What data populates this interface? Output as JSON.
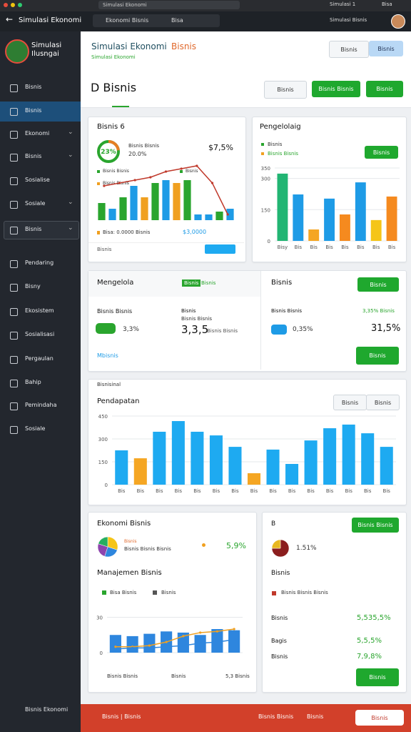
{
  "browser": {
    "tab": "Simulasi Ekonomi",
    "address": "Ekonomi Bisnis",
    "tab2": "Bisa",
    "user": "Simulasi 1",
    "action": "Bisa"
  },
  "app_bar": {
    "title": "Simulasi Ekonomi",
    "user": "Simulasi Bisnis"
  },
  "sidebar": {
    "logo": "Simulasi Ilusngai",
    "items": [
      "Bisnis",
      "Bisnis",
      "Ekonomi",
      "Bisnis",
      "Sosialise",
      "Sosiale",
      "Bisnis",
      "Pendaring",
      "Bisny",
      "Ekosistem",
      "Sosialisasi",
      "Pergaulan",
      "Bahip",
      "Pemindaha",
      "Sosiale"
    ],
    "footer": "Bisnis Ekonomi"
  },
  "header": {
    "title_a": "Simulasi Ekonomi",
    "title_b": "Bisnis",
    "subtitle": "Simulasi Ekonomi",
    "btn1": "Bisnis",
    "btn2": "Bisnis"
  },
  "page": {
    "title": "D Bisnis",
    "btn1": "Bisnis",
    "btn2": "Bisnis Bisnis",
    "btn3": "Bisnis"
  },
  "card1": {
    "title": "Bisnis 6",
    "ring_label": "23%",
    "ring_value": 23,
    "line1": "Bisnis Bisnis",
    "line2": "20.0%",
    "amount": "$7,5%",
    "legend": [
      "Bisnis Bisnis",
      "Bisnis",
      "Bisnis Bisnis"
    ],
    "chart": {
      "type": "bar",
      "ylim": [
        0,
        10
      ],
      "values": [
        3,
        2,
        4,
        6,
        4,
        6.5,
        7,
        6.5,
        7,
        1,
        1,
        1.5,
        2
      ],
      "colors": [
        "#2aa52e",
        "#1e9be6",
        "#2aa52e",
        "#1e9be6",
        "#f0a020",
        "#2aa52e",
        "#1e9be6",
        "#f0a020",
        "#2aa52e",
        "#1e9be6",
        "#1e9be6",
        "#2aa52e",
        "#1e9be6"
      ],
      "line": {
        "color": "#c0392b",
        "values": [
          6,
          6.5,
          7,
          7.5,
          8.5,
          9,
          9.5,
          6.5,
          1
        ]
      }
    },
    "footer_text": "Bisa: 0.0000 Bisnis",
    "footer_amount": "$3,0000",
    "link": "Bisnis"
  },
  "card2": {
    "title": "Pengelolaig",
    "legend": [
      "Bisnis",
      "Bisnis Bisnis"
    ],
    "button": "Bisnis",
    "chart": {
      "type": "bar",
      "ylim": [
        0,
        350
      ],
      "yticks": [
        0,
        150,
        300,
        350
      ],
      "categories": [
        "Bisy",
        "Bis",
        "Bis",
        "Bis",
        "Bis",
        "Bis",
        "Bis",
        "Bis"
      ],
      "values": [
        323,
        223,
        55,
        203,
        127,
        281,
        100,
        213
      ],
      "colors": [
        "#22b573",
        "#1e9be6",
        "#f5a623",
        "#1e9be6",
        "#f58a1f",
        "#1e9be6",
        "#f5c518",
        "#f58a1f"
      ]
    }
  },
  "card3": {
    "title": "Mengelola",
    "badge": "Bisnis",
    "badge_text": "Bisnis",
    "label1": "Bisnis Bisnis",
    "label2": "Bisnis",
    "label3": "Bisnis Bisnis",
    "pct": "3,3%",
    "big": "3,3,5",
    "small": "Bisnis Bisnis",
    "link": "Mbisnis"
  },
  "card4": {
    "title": "Bisnis",
    "button": "Bisnis",
    "label": "Bisnis Bisnis",
    "green_text": "3,35% Bisnis",
    "pct": "0,35%",
    "big": "31,5%",
    "button2": "Bisnis"
  },
  "card5": {
    "supertitle": "Bisnisinal",
    "title": "Pendapatan",
    "btn1": "Bisnis",
    "btn2": "Bisnis",
    "chart": {
      "type": "bar",
      "ylim": [
        0,
        450
      ],
      "yticks": [
        0,
        150,
        300,
        450
      ],
      "categories": [
        "Bis",
        "Bis",
        "Bis",
        "Bis",
        "Bis",
        "Bis",
        "Bis",
        "Bis",
        "Bis",
        "Bis",
        "Bis",
        "Bis",
        "Bis",
        "Bis",
        "Bis"
      ],
      "values": [
        225,
        173,
        347,
        417,
        347,
        323,
        248,
        75,
        230,
        136,
        290,
        370,
        394,
        337,
        248
      ],
      "colors": [
        "#1eaaf1",
        "#f5a623",
        "#1eaaf1",
        "#1eaaf1",
        "#1eaaf1",
        "#1eaaf1",
        "#1eaaf1",
        "#f5a623",
        "#1eaaf1",
        "#1eaaf1",
        "#1eaaf1",
        "#1eaaf1",
        "#1eaaf1",
        "#1eaaf1",
        "#1eaaf1"
      ]
    }
  },
  "card6": {
    "title": "Ekonomi Bisnis",
    "pie": {
      "type": "pie",
      "values": [
        30,
        25,
        25,
        20
      ],
      "colors": [
        "#f5c518",
        "#2e86de",
        "#8e44ad",
        "#27ae60"
      ]
    },
    "pie_label": "Bisnis",
    "pie_text": "Bisnis Bisnis Bisnis",
    "pct": "5,9%",
    "subtitle": "Manajemen Bisnis",
    "legend": [
      "Bisa Bisnis",
      "Bisnis"
    ],
    "chart": {
      "type": "bar",
      "ylim": [
        0,
        40
      ],
      "yticks": [
        0,
        30
      ],
      "values": [
        15,
        14,
        16,
        18,
        17,
        15,
        20,
        19
      ],
      "colors": [
        "#2e86de",
        "#2e86de",
        "#2e86de",
        "#2e86de",
        "#2e86de",
        "#2e86de",
        "#2e86de",
        "#2e86de"
      ],
      "lines": [
        {
          "color": "#f0a020",
          "values": [
            5,
            5,
            6,
            9,
            14,
            17,
            18,
            20
          ]
        },
        {
          "color": "#2e86de",
          "values": [
            3,
            4,
            4,
            5,
            6,
            8,
            9,
            11
          ]
        }
      ]
    },
    "footer_left": "Bisnis Bisnis",
    "footer_mid": "Bisnis",
    "footer_right": "5,3 Bisnis"
  },
  "card7": {
    "button": "Bisnis Bisnis",
    "letter": "B",
    "pie": {
      "type": "pie",
      "values": [
        75,
        25
      ],
      "colors": [
        "#8b1e1e",
        "#e8b820"
      ]
    },
    "pie_label": "1.51%",
    "title": "Bisnis",
    "legend": "Bisnis Bisnis Bisnis",
    "rows": [
      [
        "Bisnis",
        "5,535,5%"
      ],
      [
        "Bagis",
        "5,5,5%"
      ],
      [
        "Bisnis",
        "7,9,8%"
      ]
    ],
    "button2": "Bisnis"
  },
  "bottom_bar": {
    "left": "Bisnis | Bisnis",
    "mid": "Bisnis Bisnis",
    "mid2": "Bisnis",
    "right": "Bisnis"
  }
}
